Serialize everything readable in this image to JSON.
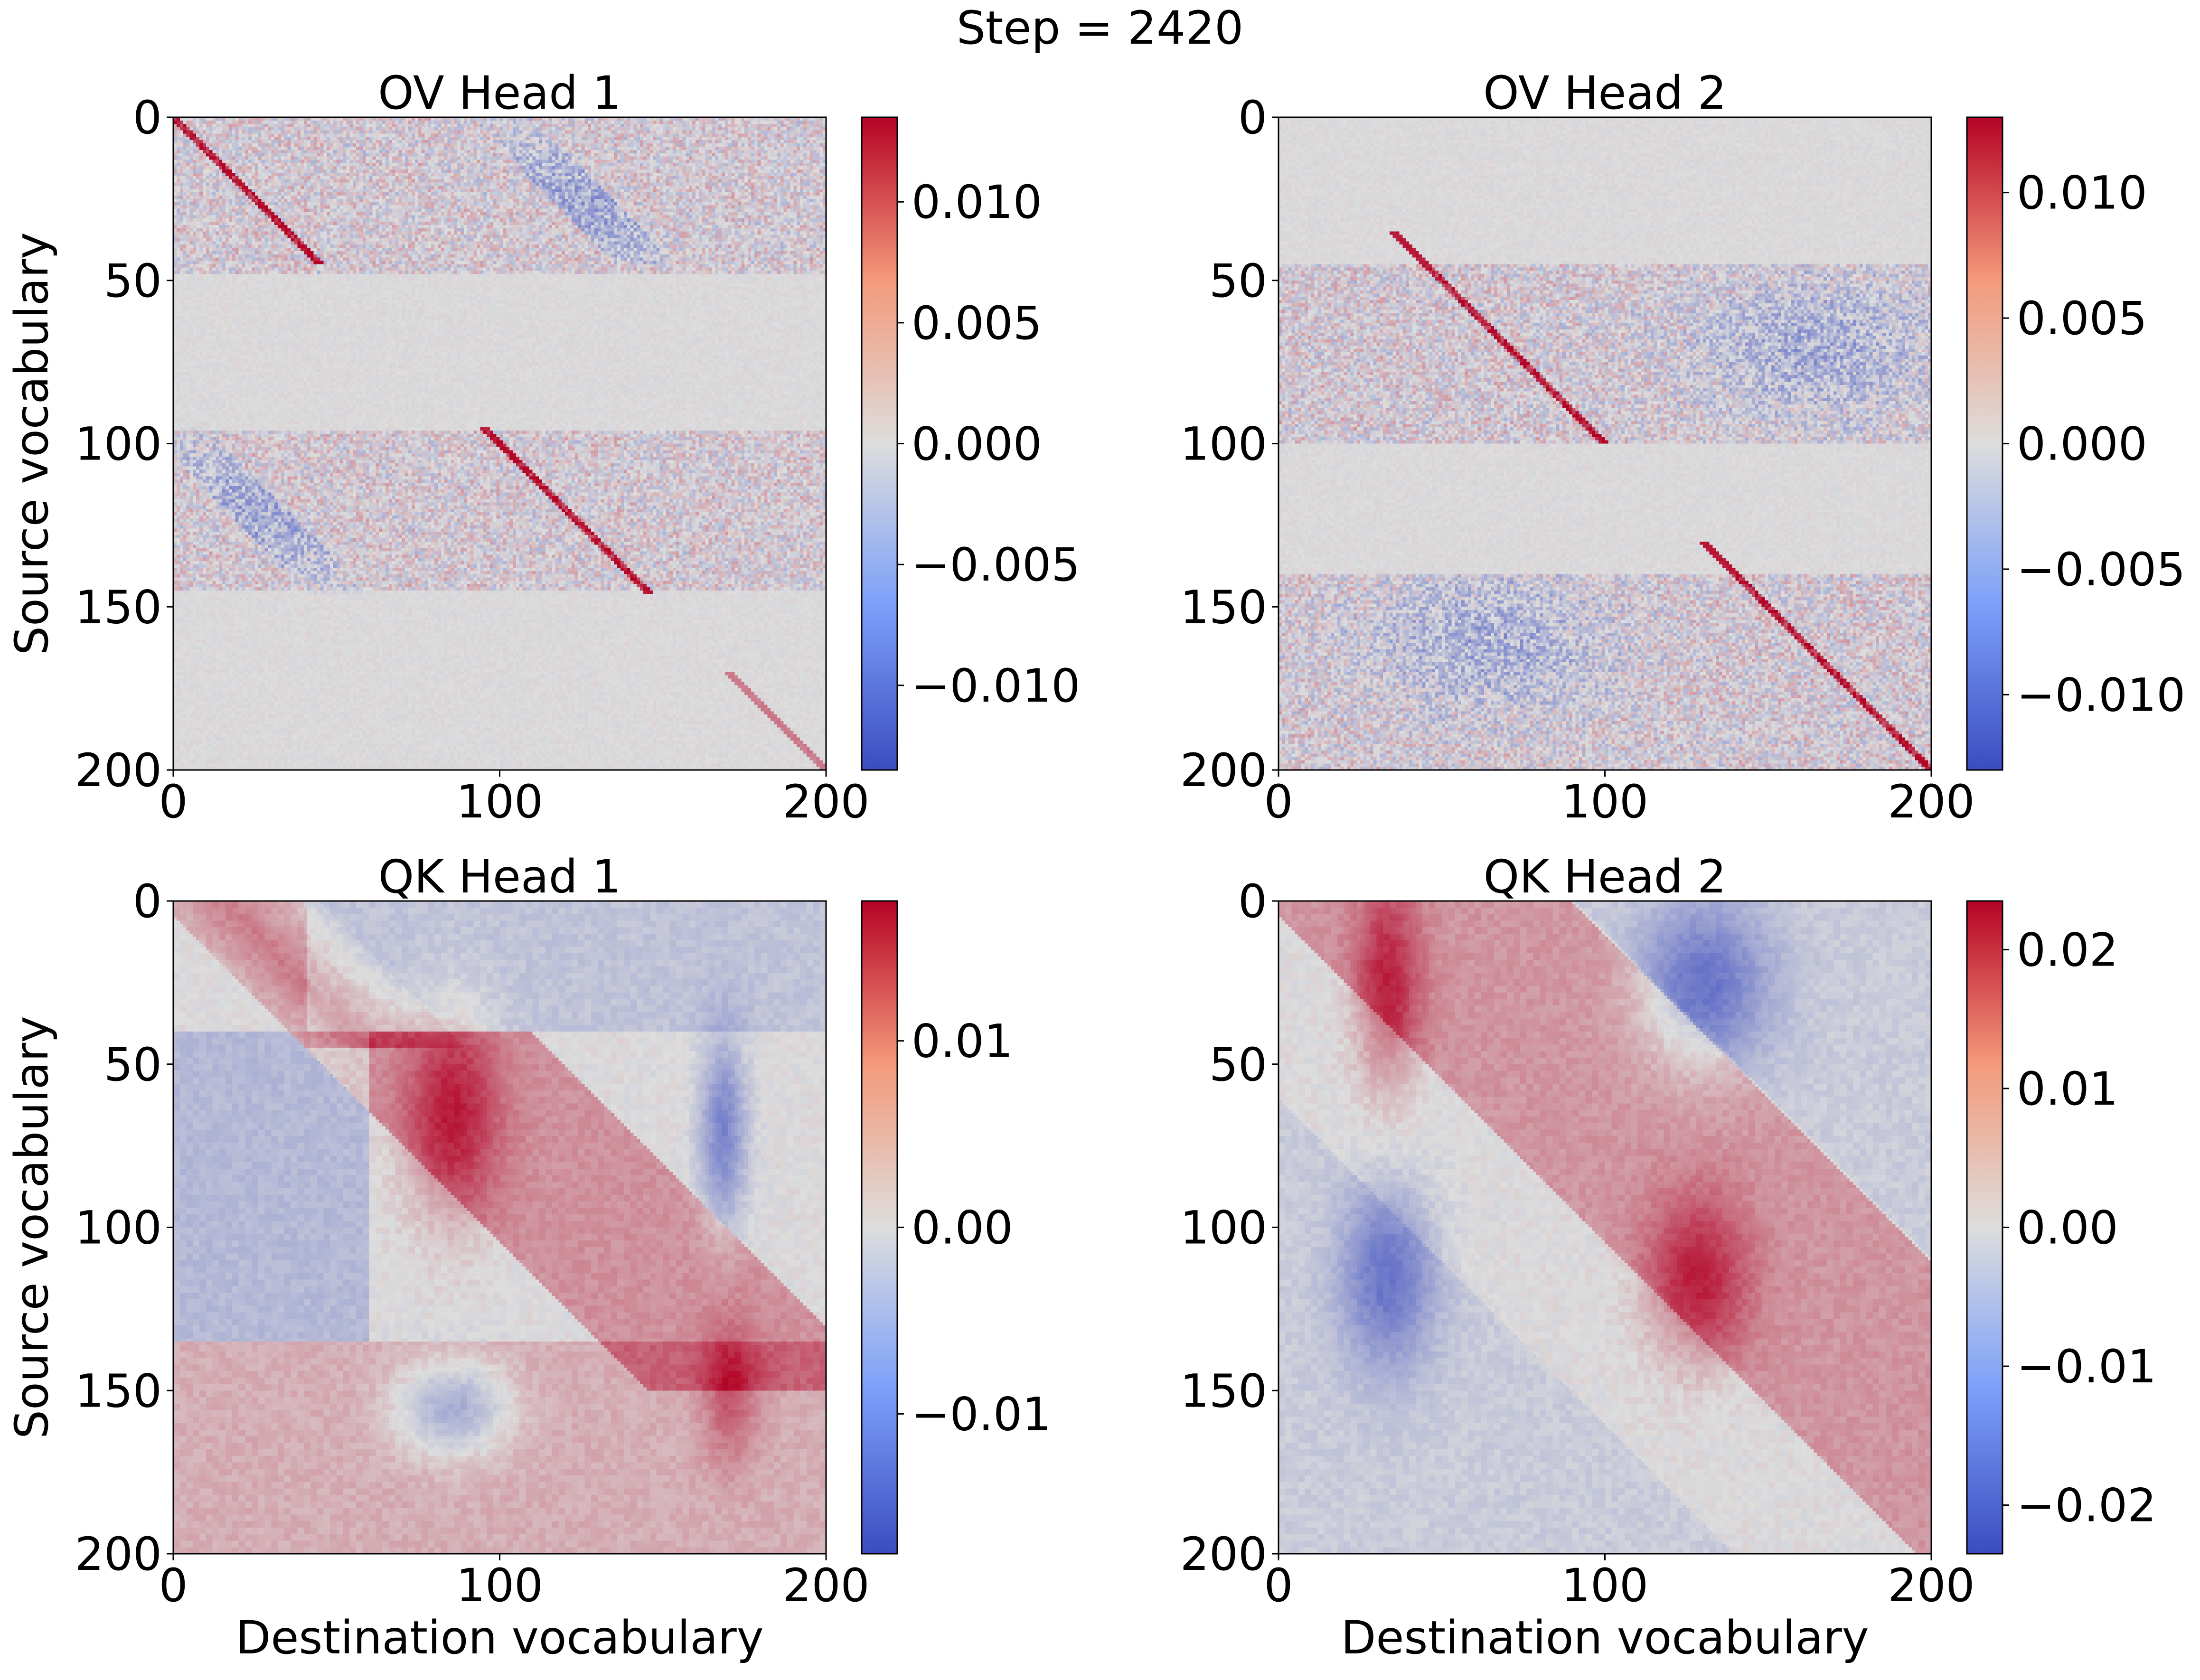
{
  "suptitle": "Step = 2420",
  "colormap": {
    "name": "coolwarm",
    "low": "#3b4cc0",
    "mid": "#dddddd",
    "high": "#b40426"
  },
  "chart_data": [
    {
      "type": "heatmap",
      "title": "OV Head 1",
      "xlabel": "",
      "ylabel": "Source vocabulary",
      "xlim": [
        0,
        200
      ],
      "ylim": [
        200,
        0
      ],
      "xticks": [
        "0",
        "100",
        "200"
      ],
      "yticks": [
        "0",
        "50",
        "100",
        "150",
        "200"
      ],
      "colorbar": {
        "vmin": -0.0135,
        "vmax": 0.0135,
        "ticks": [
          0.01,
          0.005,
          0.0,
          -0.005,
          -0.01
        ],
        "tick_labels": [
          "0.010",
          "0.005",
          "0.000",
          "−0.005",
          "−0.010"
        ]
      },
      "pattern": "ov1"
    },
    {
      "type": "heatmap",
      "title": "OV Head 2",
      "xlabel": "",
      "ylabel": "",
      "xlim": [
        0,
        200
      ],
      "ylim": [
        200,
        0
      ],
      "xticks": [
        "0",
        "100",
        "200"
      ],
      "yticks": [
        "0",
        "50",
        "100",
        "150",
        "200"
      ],
      "colorbar": {
        "vmin": -0.013,
        "vmax": 0.013,
        "ticks": [
          0.01,
          0.005,
          0.0,
          -0.005,
          -0.01
        ],
        "tick_labels": [
          "0.010",
          "0.005",
          "0.000",
          "−0.005",
          "−0.010"
        ]
      },
      "pattern": "ov2"
    },
    {
      "type": "heatmap",
      "title": "QK Head 1",
      "xlabel": "Destination vocabulary",
      "ylabel": "Source vocabulary",
      "xlim": [
        0,
        200
      ],
      "ylim": [
        200,
        0
      ],
      "xticks": [
        "0",
        "100",
        "200"
      ],
      "yticks": [
        "0",
        "50",
        "100",
        "150",
        "200"
      ],
      "colorbar": {
        "vmin": -0.0175,
        "vmax": 0.0175,
        "ticks": [
          0.01,
          0.0,
          -0.01
        ],
        "tick_labels": [
          "0.01",
          "0.00",
          "−0.01"
        ]
      },
      "pattern": "qk1"
    },
    {
      "type": "heatmap",
      "title": "QK Head 2",
      "xlabel": "Destination vocabulary",
      "ylabel": "",
      "xlim": [
        0,
        200
      ],
      "ylim": [
        200,
        0
      ],
      "xticks": [
        "0",
        "100",
        "200"
      ],
      "yticks": [
        "0",
        "50",
        "100",
        "150",
        "200"
      ],
      "colorbar": {
        "vmin": -0.0235,
        "vmax": 0.0235,
        "ticks": [
          0.02,
          0.01,
          0.0,
          -0.01,
          -0.02
        ],
        "tick_labels": [
          "0.02",
          "0.01",
          "0.00",
          "−0.01",
          "−0.02"
        ]
      },
      "pattern": "qk2"
    }
  ]
}
